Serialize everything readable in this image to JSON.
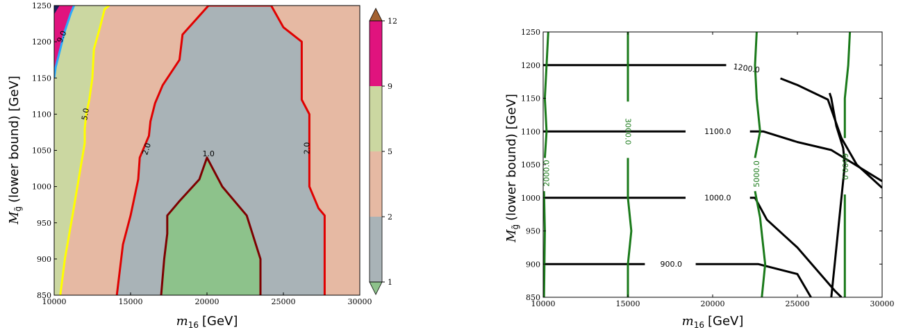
{
  "chart_data": [
    {
      "type": "filled-contour",
      "xlabel_var": "m",
      "xlabel_sub": "16",
      "xlabel_unit": "[GeV]",
      "ylabel_var": "M",
      "ylabel_sub": "g̃",
      "ylabel_unit": "(lower bound) [GeV]",
      "xlim": [
        10000,
        30000
      ],
      "ylim": [
        850,
        1250
      ],
      "xticks": [
        "10000",
        "15000",
        "20000",
        "25000",
        "30000"
      ],
      "yticks": [
        "850",
        "900",
        "950",
        "1000",
        "1050",
        "1100",
        "1150",
        "1200",
        "1250"
      ],
      "colorbar": {
        "ticks": [
          "1",
          "2",
          "5",
          "9",
          "12"
        ],
        "levels": [
          1,
          2,
          5,
          9,
          12
        ],
        "extend": "both",
        "colors": [
          "#8dc28b",
          "#a9b3b7",
          "#e6b9a3",
          "#cbd7a1",
          "#e0137e",
          "#a36232"
        ]
      },
      "region_colors": {
        "lt1": "#8dc28b",
        "r1_2": "#a9b3b7",
        "r2_5": "#e6b9a3",
        "r5_9": "#cbd7a1",
        "r9_12": "#e0137e",
        "gt12": "#1a1f5c"
      },
      "contours": [
        {
          "level": "1.0",
          "color": "#7d0000",
          "x": [
            17000,
            17200,
            17400,
            17400,
            18200,
            19500,
            20000,
            21000,
            22600,
            23500,
            23500
          ],
          "y": [
            850,
            900,
            935,
            960,
            980,
            1010,
            1040,
            1000,
            960,
            900,
            850
          ]
        },
        {
          "level": "2.0",
          "color": "#e00000",
          "x": [
            14100,
            14500,
            15000,
            15500,
            15600,
            16200,
            16300,
            16600,
            17100,
            18200,
            18400,
            20100,
            22000,
            24200,
            25000,
            26200,
            26200,
            26700,
            26700,
            27300,
            27700,
            27700
          ],
          "y": [
            850,
            920,
            960,
            1010,
            1040,
            1070,
            1090,
            1115,
            1140,
            1175,
            1210,
            1250,
            1250,
            1250,
            1220,
            1200,
            1120,
            1100,
            1000,
            970,
            960,
            850
          ]
        },
        {
          "level": "5.0",
          "color": "#ffff00",
          "x": [
            10400,
            10700,
            11200,
            11600,
            12000,
            12000,
            12100,
            12300,
            12500,
            12600,
            13000,
            13300,
            13600
          ],
          "y": [
            850,
            900,
            960,
            1010,
            1060,
            1080,
            1100,
            1120,
            1150,
            1190,
            1220,
            1245,
            1250
          ]
        },
        {
          "level": "9.0",
          "color": "#29a8ff",
          "x": [
            10000,
            10100,
            10400,
            10700,
            11100,
            11300
          ],
          "y": [
            1150,
            1165,
            1190,
            1215,
            1240,
            1250
          ]
        }
      ],
      "contour_labels": [
        {
          "text": "9.0",
          "x": 10500,
          "y": 1207,
          "rot": -65,
          "color": "#000"
        },
        {
          "text": "5.0",
          "x": 12050,
          "y": 1100,
          "rot": -80,
          "color": "#000"
        },
        {
          "text": "2.0",
          "x": 16050,
          "y": 1052,
          "rot": -72,
          "color": "#000"
        },
        {
          "text": "2.0",
          "x": 26550,
          "y": 1053,
          "rot": -90,
          "color": "#000"
        },
        {
          "text": "1.0",
          "x": 20100,
          "y": 1045,
          "rot": 0,
          "color": "#000"
        }
      ]
    },
    {
      "type": "line-contour",
      "xlabel_var": "m",
      "xlabel_sub": "16",
      "xlabel_unit": "[GeV]",
      "ylabel_var": "M",
      "ylabel_sub": "g̃",
      "ylabel_unit": "(lower bound) [GeV]",
      "xlim": [
        10000,
        30000
      ],
      "ylim": [
        850,
        1250
      ],
      "xticks": [
        "10000",
        "15000",
        "20000",
        "25000",
        "30000"
      ],
      "yticks": [
        "850",
        "900",
        "950",
        "1000",
        "1050",
        "1100",
        "1150",
        "1200",
        "1250"
      ],
      "series": [
        {
          "color": "#000000",
          "segments": [
            [
              [
                10000,
                1200
              ],
              [
                20800,
                1200
              ]
            ],
            [
              [
                10000,
                1100
              ],
              [
                18400,
                1100
              ]
            ],
            [
              [
                22200,
                1100
              ],
              [
                23000,
                1100
              ],
              [
                25000,
                1084
              ],
              [
                27000,
                1072
              ],
              [
                30000,
                1025
              ]
            ],
            [
              [
                10000,
                1000
              ],
              [
                18400,
                1000
              ]
            ],
            [
              [
                22200,
                1000
              ],
              [
                22500,
                1000
              ],
              [
                23200,
                967
              ],
              [
                25000,
                925
              ],
              [
                27200,
                860
              ],
              [
                27600,
                850
              ]
            ],
            [
              [
                10000,
                900
              ],
              [
                16000,
                900
              ]
            ],
            [
              [
                19000,
                900
              ],
              [
                22700,
                900
              ],
              [
                25000,
                885
              ],
              [
                25800,
                850
              ]
            ],
            [
              [
                24000,
                1180
              ],
              [
                25000,
                1170
              ],
              [
                26800,
                1148
              ],
              [
                27600,
                1090
              ],
              [
                28500,
                1050
              ],
              [
                30000,
                1015
              ]
            ],
            [
              [
                26900,
                1158
              ],
              [
                27000,
                1150
              ],
              [
                27300,
                1108
              ],
              [
                27700,
                1075
              ],
              [
                27800,
                1050
              ],
              [
                27600,
                1000
              ],
              [
                27200,
                900
              ],
              [
                27000,
                850
              ]
            ]
          ]
        },
        {
          "color": "#1a7a1a",
          "segments": [
            [
              [
                10300,
                1250
              ],
              [
                10200,
                1200
              ],
              [
                10100,
                1150
              ],
              [
                10200,
                1100
              ],
              [
                10100,
                1060
              ]
            ],
            [
              [
                10050,
                1010
              ],
              [
                10100,
                950
              ],
              [
                10050,
                850
              ]
            ],
            [
              [
                15000,
                1250
              ],
              [
                15000,
                1200
              ],
              [
                15000,
                1145
              ]
            ],
            [
              [
                15000,
                1060
              ],
              [
                15000,
                1000
              ],
              [
                15200,
                950
              ],
              [
                15000,
                900
              ],
              [
                15000,
                850
              ]
            ],
            [
              [
                22600,
                1250
              ],
              [
                22500,
                1200
              ],
              [
                22600,
                1150
              ],
              [
                22800,
                1100
              ],
              [
                22500,
                1060
              ]
            ],
            [
              [
                22500,
                1010
              ],
              [
                22800,
                970
              ],
              [
                23100,
                900
              ],
              [
                22900,
                850
              ]
            ],
            [
              [
                28100,
                1250
              ],
              [
                28000,
                1200
              ],
              [
                27800,
                1150
              ],
              [
                27800,
                1090
              ]
            ],
            [
              [
                27800,
                1005
              ],
              [
                27800,
                850
              ]
            ]
          ]
        }
      ],
      "contour_labels": [
        {
          "text": "1200.0",
          "x": 22000,
          "y": 1195,
          "rot": 8,
          "color": "#000"
        },
        {
          "text": "1100.0",
          "x": 20300,
          "y": 1100,
          "rot": 0,
          "color": "#000"
        },
        {
          "text": "1000.0",
          "x": 20300,
          "y": 1000,
          "rot": 0,
          "color": "#000"
        },
        {
          "text": "900.0",
          "x": 17550,
          "y": 900,
          "rot": 0,
          "color": "#000"
        },
        {
          "text": "2000.0",
          "x": 10200,
          "y": 1037,
          "rot": -90,
          "color": "#1a7a1a"
        },
        {
          "text": "3000.0",
          "x": 15000,
          "y": 1100,
          "rot": 90,
          "color": "#1a7a1a"
        },
        {
          "text": "5000.0",
          "x": 22600,
          "y": 1036,
          "rot": -90,
          "color": "#1a7a1a"
        },
        {
          "text": "6000.0",
          "x": 27800,
          "y": 1047,
          "rot": 90,
          "color": "#1a7a1a"
        }
      ]
    }
  ]
}
